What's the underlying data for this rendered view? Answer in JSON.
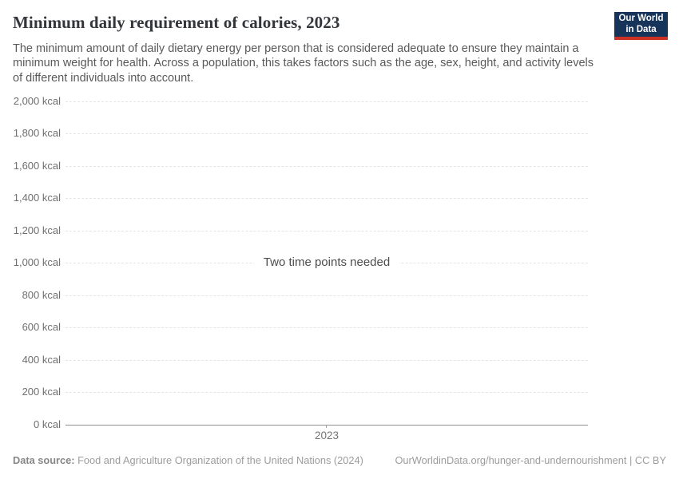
{
  "header": {
    "title": "Minimum daily requirement of calories, 2023",
    "subtitle": "The minimum amount of daily dietary energy per person that is considered adequate to ensure they maintain a minimum weight for health. Across a population, this takes factors such as the age, sex, height, and activity levels of different individuals into account.",
    "logo": {
      "line1": "Our World",
      "line2": "in Data"
    }
  },
  "chart_data": {
    "type": "line",
    "title": "Minimum daily requirement of calories, 2023",
    "xlabel": "",
    "ylabel": "kcal",
    "ylim": [
      0,
      2000
    ],
    "y_ticks": [
      {
        "value": 0,
        "label": "0 kcal"
      },
      {
        "value": 200,
        "label": "200 kcal"
      },
      {
        "value": 400,
        "label": "400 kcal"
      },
      {
        "value": 600,
        "label": "600 kcal"
      },
      {
        "value": 800,
        "label": "800 kcal"
      },
      {
        "value": 1000,
        "label": "1,000 kcal"
      },
      {
        "value": 1200,
        "label": "1,200 kcal"
      },
      {
        "value": 1400,
        "label": "1,400 kcal"
      },
      {
        "value": 1600,
        "label": "1,600 kcal"
      },
      {
        "value": 1800,
        "label": "1,800 kcal"
      },
      {
        "value": 2000,
        "label": "2,000 kcal"
      }
    ],
    "x_ticks": [
      "2023"
    ],
    "series": [],
    "empty_state_message": "Two time points needed",
    "grid": "horizontal dashed",
    "legend_position": "none"
  },
  "footer": {
    "source_label": "Data source:",
    "source_text": " Food and Agriculture Organization of the United Nations (2024)",
    "link_text": "OurWorldinData.org/hunger-and-undernourishment | CC BY"
  },
  "colors": {
    "logo_navy": "#16335a",
    "logo_red": "#cd3025",
    "title_text": "#32353a",
    "subtitle_text": "#595959",
    "tick_text": "#6f6f6f",
    "gridline": "#e5e5e5",
    "axis_line": "#8f8f8f"
  }
}
